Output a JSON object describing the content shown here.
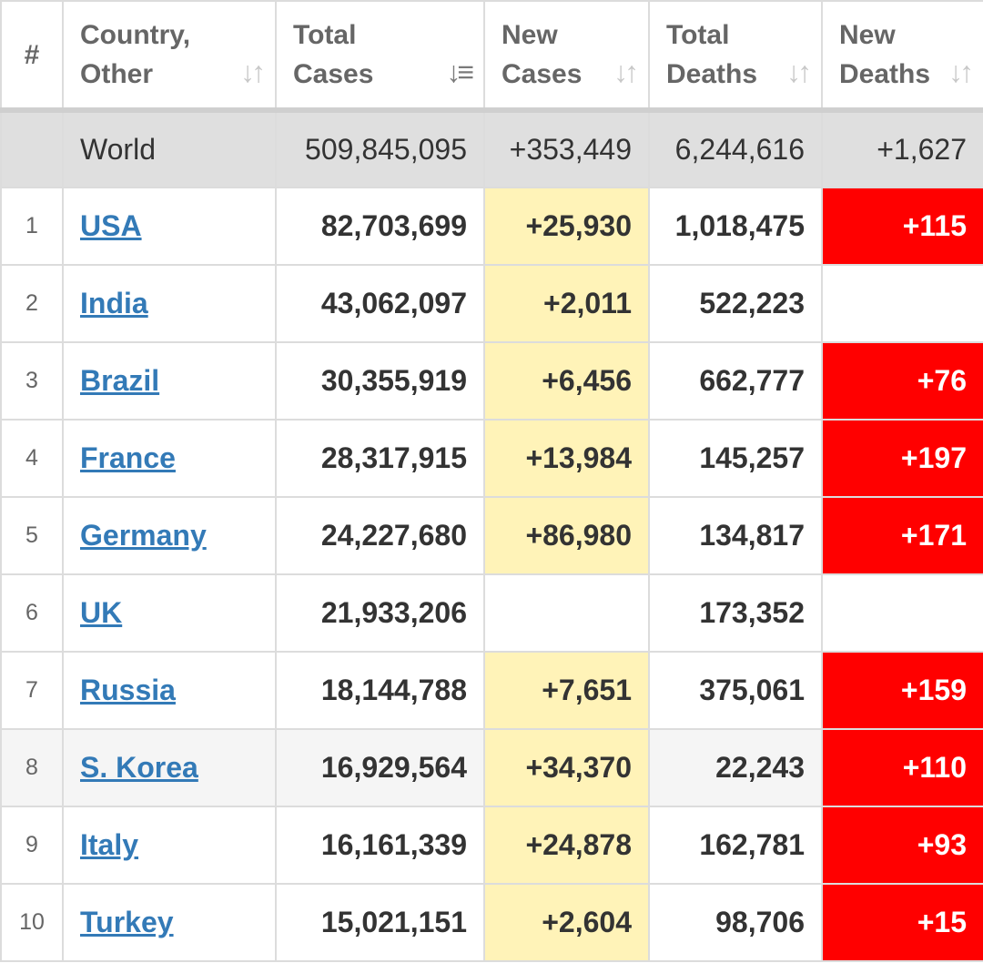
{
  "header": {
    "rank": "#",
    "country": "Country, Other",
    "total_cases": "Total Cases",
    "new_cases": "New Cases",
    "total_deaths": "Total Deaths",
    "new_deaths": "New Deaths"
  },
  "icons": {
    "sort": "sort-icon",
    "sort_active": "sort-descending-icon"
  },
  "colors": {
    "new_cases_bg": "#fff3b8",
    "new_deaths_bg": "#ff0000",
    "link": "#337ab7",
    "world_bg": "#dfdfdf"
  },
  "world": {
    "name": "World",
    "total_cases": "509,845,095",
    "new_cases": "+353,449",
    "total_deaths": "6,244,616",
    "new_deaths": "+1,627"
  },
  "rows": [
    {
      "rank": "1",
      "country": "USA",
      "total_cases": "82,703,699",
      "new_cases": "+25,930",
      "total_deaths": "1,018,475",
      "new_deaths": "+115"
    },
    {
      "rank": "2",
      "country": "India",
      "total_cases": "43,062,097",
      "new_cases": "+2,011",
      "total_deaths": "522,223",
      "new_deaths": ""
    },
    {
      "rank": "3",
      "country": "Brazil",
      "total_cases": "30,355,919",
      "new_cases": "+6,456",
      "total_deaths": "662,777",
      "new_deaths": "+76"
    },
    {
      "rank": "4",
      "country": "France",
      "total_cases": "28,317,915",
      "new_cases": "+13,984",
      "total_deaths": "145,257",
      "new_deaths": "+197"
    },
    {
      "rank": "5",
      "country": "Germany",
      "total_cases": "24,227,680",
      "new_cases": "+86,980",
      "total_deaths": "134,817",
      "new_deaths": "+171"
    },
    {
      "rank": "6",
      "country": "UK",
      "total_cases": "21,933,206",
      "new_cases": "",
      "total_deaths": "173,352",
      "new_deaths": ""
    },
    {
      "rank": "7",
      "country": "Russia",
      "total_cases": "18,144,788",
      "new_cases": "+7,651",
      "total_deaths": "375,061",
      "new_deaths": "+159"
    },
    {
      "rank": "8",
      "country": "S. Korea",
      "total_cases": "16,929,564",
      "new_cases": "+34,370",
      "total_deaths": "22,243",
      "new_deaths": "+110"
    },
    {
      "rank": "9",
      "country": "Italy",
      "total_cases": "16,161,339",
      "new_cases": "+24,878",
      "total_deaths": "162,781",
      "new_deaths": "+93"
    },
    {
      "rank": "10",
      "country": "Turkey",
      "total_cases": "15,021,151",
      "new_cases": "+2,604",
      "total_deaths": "98,706",
      "new_deaths": "+15"
    }
  ]
}
